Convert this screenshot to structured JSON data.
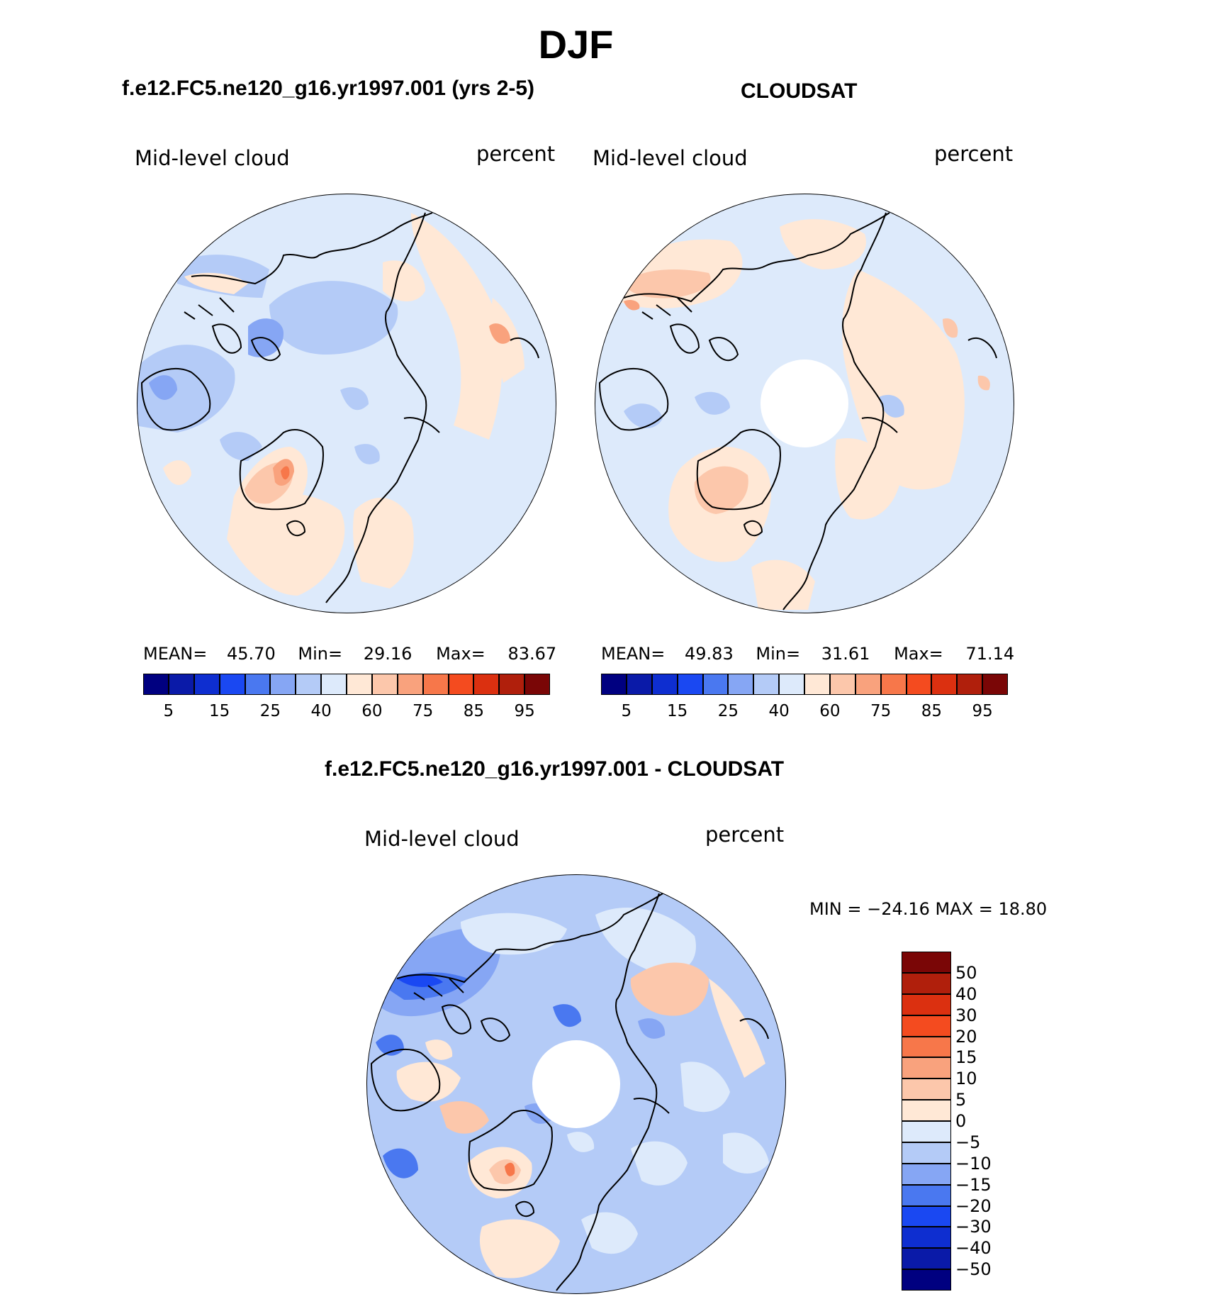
{
  "title": "DJF",
  "panels": [
    {
      "id": "model",
      "title": "f.e12.FC5.ne120_g16.yr1997.001 (yrs 2-5)",
      "left_label": "Mid-level cloud",
      "right_label": "percent",
      "stats": {
        "mean_label": "MEAN=",
        "mean": "45.70",
        "min_label": "Min=",
        "min": "29.16",
        "max_label": "Max=",
        "max": "83.67"
      }
    },
    {
      "id": "obs",
      "title": "CLOUDSAT",
      "left_label": "Mid-level cloud",
      "right_label": "percent",
      "stats": {
        "mean_label": "MEAN=",
        "mean": "49.83",
        "min_label": "Min=",
        "min": "31.61",
        "max_label": "Max=",
        "max": "71.14"
      }
    },
    {
      "id": "diff",
      "title": "f.e12.FC5.ne120_g16.yr1997.001 - CLOUDSAT",
      "left_label": "Mid-level cloud",
      "right_label": "percent",
      "stats": {
        "minmax_text": "MIN = −24.16 MAX =   18.80"
      }
    }
  ],
  "colorbar_abs": {
    "colors": [
      "#000080",
      "#0a1aa8",
      "#0e2ed0",
      "#1a48f2",
      "#4a78f0",
      "#86a6f4",
      "#b4cbf7",
      "#ddeafb",
      "#ffe8d6",
      "#fcc7ab",
      "#f9a27d",
      "#f7774a",
      "#f44b1f",
      "#db3010",
      "#b01f0c",
      "#7a0606"
    ],
    "tick_labels": [
      "5",
      "15",
      "25",
      "40",
      "60",
      "75",
      "85",
      "95"
    ]
  },
  "colorbar_diff": {
    "colors": [
      "#7a0606",
      "#b01f0c",
      "#db3010",
      "#f44b1f",
      "#f7774a",
      "#f9a27d",
      "#fcc7ab",
      "#ffe8d6",
      "#ddeafb",
      "#b4cbf7",
      "#86a6f4",
      "#4a78f0",
      "#1a48f2",
      "#0e2ed0",
      "#0a1aa8",
      "#000080"
    ],
    "tick_labels": [
      "50",
      "40",
      "30",
      "20",
      "15",
      "10",
      "5",
      "0",
      "−5",
      "−10",
      "−15",
      "−20",
      "−30",
      "−40",
      "−50"
    ]
  }
}
